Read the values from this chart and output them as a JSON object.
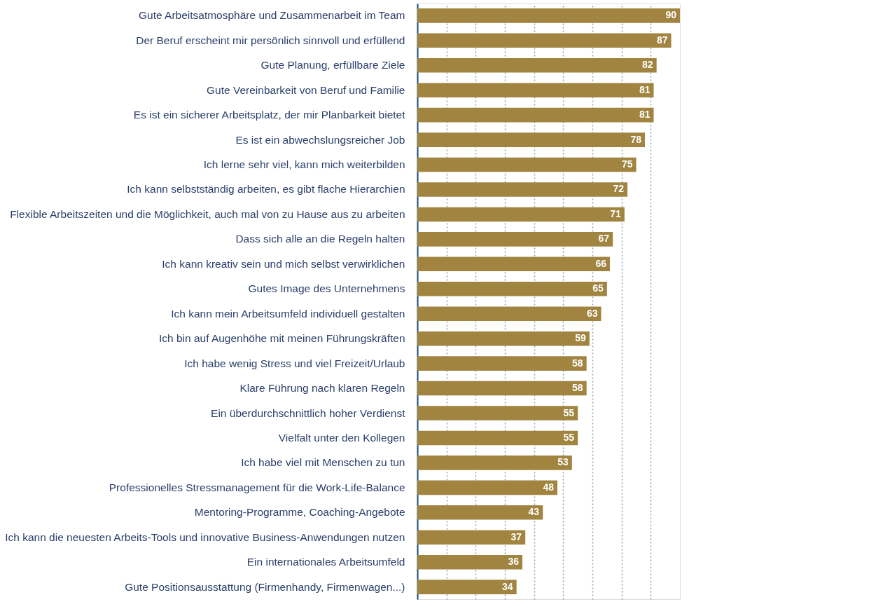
{
  "chart_data": {
    "type": "bar",
    "orientation": "horizontal",
    "categories": [
      "Gute Arbeitsatmosphäre und Zusammenarbeit im Team",
      "Der Beruf erscheint mir persönlich sinnvoll und erfüllend",
      "Gute Planung, erfüllbare Ziele",
      "Gute Vereinbarkeit von Beruf und Familie",
      "Es ist ein sicherer Arbeitsplatz, der mir Planbarkeit bietet",
      "Es ist ein abwechslungsreicher Job",
      "Ich lerne sehr viel, kann mich weiterbilden",
      "Ich kann selbstständig arbeiten, es gibt flache Hierarchien",
      "Flexible Arbeitszeiten und die Möglichkeit, auch mal von zu Hause aus zu arbeiten",
      "Dass sich alle an die Regeln halten",
      "Ich kann kreativ sein und mich selbst verwirklichen",
      "Gutes Image des Unternehmens",
      "Ich kann mein Arbeitsumfeld individuell gestalten",
      "Ich bin auf Augenhöhe mit meinen Führungskräften",
      "Ich habe wenig Stress und viel Freizeit/Urlaub",
      "Klare Führung nach klaren Regeln",
      "Ein überdurchschnittlich hoher Verdienst",
      "Vielfalt unter den Kollegen",
      "Ich habe viel mit Menschen zu tun",
      "Professionelles Stressmanagement für die Work-Life-Balance",
      "Mentoring-Programme, Coaching-Angebote",
      "Ich kann die neuesten Arbeits-Tools und innovative Business-Anwendungen nutzen",
      "Ein internationales Arbeitsumfeld",
      "Gute Positionsausstattung (Firmenhandy, Firmenwagen...)"
    ],
    "values": [
      90,
      87,
      82,
      81,
      81,
      78,
      75,
      72,
      71,
      67,
      66,
      65,
      63,
      59,
      58,
      58,
      55,
      55,
      53,
      48,
      43,
      37,
      36,
      34
    ],
    "color": "#a08440",
    "xlim": [
      0,
      90
    ],
    "xticks": [
      {
        "value": 0,
        "label": null
      },
      {
        "value": 10,
        "label": null
      },
      {
        "value": 20,
        "label": null
      },
      {
        "value": 30,
        "label": null
      },
      {
        "value": 40,
        "label": null
      },
      {
        "value": 50,
        "label": null
      },
      {
        "value": 60,
        "label": null
      },
      {
        "value": 70,
        "label": null
      },
      {
        "value": 80,
        "label": null
      }
    ],
    "grid": "x",
    "tick_labels": "y",
    "data_labels": true
  }
}
